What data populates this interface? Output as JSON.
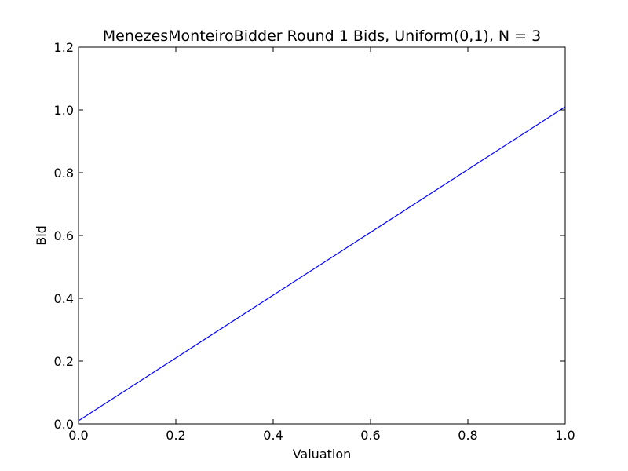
{
  "chart_data": {
    "type": "line",
    "title": "MenezesMonteiroBidder Round 1 Bids, Uniform(0,1), N = 3",
    "xlabel": "Valuation",
    "ylabel": "Bid",
    "xlim": [
      0.0,
      1.0
    ],
    "ylim": [
      0.0,
      1.2
    ],
    "xticks": [
      0.0,
      0.2,
      0.4,
      0.6,
      0.8,
      1.0
    ],
    "xtick_labels": [
      "0.0",
      "0.2",
      "0.4",
      "0.6",
      "0.8",
      "1.0"
    ],
    "yticks": [
      0.0,
      0.2,
      0.4,
      0.6,
      0.8,
      1.0,
      1.2
    ],
    "ytick_labels": [
      "0.0",
      "0.2",
      "0.4",
      "0.6",
      "0.8",
      "1.0",
      "1.2"
    ],
    "grid": false,
    "legend": false,
    "series": [
      {
        "color": "#0000ff",
        "x": [
          0.0,
          0.2,
          0.4,
          0.6,
          0.8,
          1.0
        ],
        "y": [
          0.01,
          0.21,
          0.41,
          0.61,
          0.81,
          1.01
        ]
      }
    ]
  }
}
